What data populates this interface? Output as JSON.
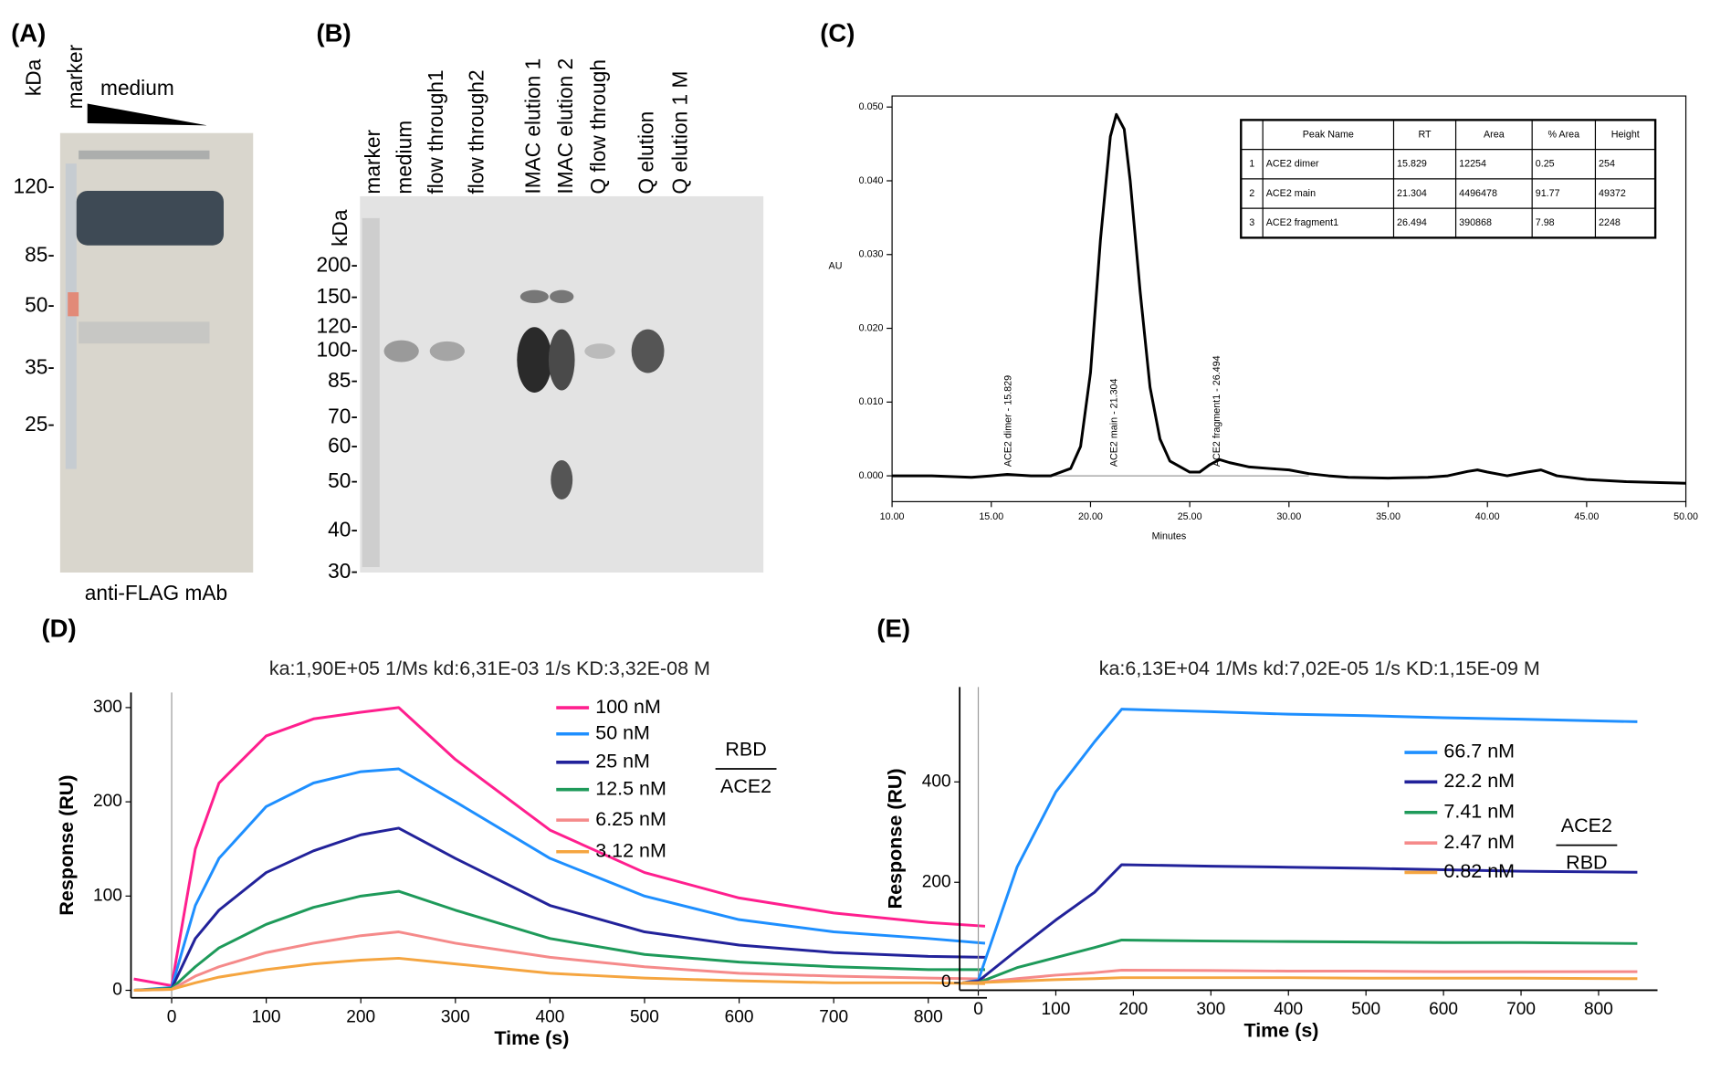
{
  "panel_labels": [
    "(A)",
    "(B)",
    "(C)",
    "(D)",
    "(E)"
  ],
  "gel_a": {
    "unit": "kDa",
    "lane_label": "marker",
    "gradient_label": "medium",
    "markers": [
      "120-",
      "85-",
      "50-",
      "35-",
      "25-"
    ],
    "caption": "anti-FLAG mAb"
  },
  "gel_b": {
    "unit": "kDa",
    "lanes": [
      "marker",
      "medium",
      "flow through1",
      "flow through2",
      "IMAC elution 1",
      "IMAC elution 2",
      "Q flow through",
      "Q elution",
      "Q elution 1 M"
    ],
    "markers": [
      "200-",
      "150-",
      "120-",
      "100-",
      "85-",
      "70-",
      "60-",
      "50-",
      "40-",
      "30-"
    ]
  },
  "chart_data": [
    {
      "type": "line",
      "xlabel": "Minutes",
      "ylabel": "AU",
      "color": "#000000",
      "x": [
        10,
        12,
        14,
        15,
        15.8,
        17,
        18,
        19,
        19.5,
        20,
        20.5,
        21,
        21.3,
        21.7,
        22,
        22.5,
        23,
        23.5,
        24,
        25,
        25.5,
        26,
        26.5,
        27,
        28,
        29,
        30,
        31,
        32,
        33,
        35,
        37,
        38,
        39,
        39.5,
        40,
        41,
        42,
        42.7,
        43.5,
        45,
        47,
        50
      ],
      "values": [
        0,
        0,
        -0.0002,
        0,
        0.0002,
        0,
        0,
        0.001,
        0.004,
        0.014,
        0.032,
        0.046,
        0.049,
        0.047,
        0.04,
        0.025,
        0.012,
        0.005,
        0.002,
        0.0005,
        0.0005,
        0.0015,
        0.0022,
        0.0018,
        0.0012,
        0.001,
        0.0008,
        0.0003,
        0,
        -0.0002,
        -0.0003,
        -0.0002,
        0,
        0.0006,
        0.0008,
        0.0005,
        0,
        0.0005,
        0.0008,
        0,
        -0.0005,
        -0.0008,
        -0.001
      ],
      "xlim": [
        10,
        50
      ],
      "ylim": [
        -0.0035,
        0.0515
      ],
      "xticks": [
        {
          "value": 10,
          "label": "10.00"
        },
        {
          "value": 15,
          "label": "15.00"
        },
        {
          "value": 20,
          "label": "20.00"
        },
        {
          "value": 25,
          "label": "25.00"
        },
        {
          "value": 30,
          "label": "30.00"
        },
        {
          "value": 35,
          "label": "35.00"
        },
        {
          "value": 40,
          "label": "40.00"
        },
        {
          "value": 45,
          "label": "45.00"
        },
        {
          "value": 50,
          "label": "50.00"
        }
      ],
      "yticks": [
        {
          "value": 0,
          "label": "0.000"
        },
        {
          "value": 0.01,
          "label": "0.010"
        },
        {
          "value": 0.02,
          "label": "0.020"
        },
        {
          "value": 0.03,
          "label": "0.030"
        },
        {
          "value": 0.04,
          "label": "0.040"
        },
        {
          "value": 0.05,
          "label": "0.050"
        }
      ],
      "annotations": [
        "ACE2 dimer  - 15.829",
        "ACE2 main - 21.304",
        "ACE2 fragment1 - 26.494"
      ],
      "table": {
        "header": [
          "Peak Name",
          "RT",
          "Area",
          "% Area",
          "Height"
        ],
        "rows": [
          [
            "1",
            "ACE2 dimer",
            "15.829",
            "12254",
            "0.25",
            "254"
          ],
          [
            "2",
            "ACE2 main",
            "21.304",
            "4496478",
            "91.77",
            "49372"
          ],
          [
            "3",
            "ACE2 fragment1",
            "26.494",
            "390868",
            "7.98",
            "2248"
          ]
        ]
      }
    },
    {
      "type": "line",
      "title": "ka:1,90E+05 1/Ms  kd:6,31E-03 1/s  KD:3,32E-08 M",
      "xlabel": "Time (s)",
      "ylabel": "Response (RU)",
      "x": [
        -40,
        0,
        25,
        50,
        100,
        150,
        200,
        240,
        300,
        400,
        500,
        600,
        700,
        800,
        860
      ],
      "series": [
        {
          "name": "100 nM",
          "color": "#ff1f8e",
          "values": [
            12,
            5,
            150,
            220,
            270,
            288,
            295,
            300,
            245,
            170,
            125,
            98,
            82,
            72,
            68
          ]
        },
        {
          "name": "50 nM",
          "color": "#1e8fff",
          "values": [
            0,
            3,
            90,
            140,
            195,
            220,
            232,
            235,
            200,
            140,
            100,
            75,
            62,
            55,
            50
          ]
        },
        {
          "name": "25 nM",
          "color": "#22229a",
          "values": [
            0,
            2,
            55,
            85,
            125,
            148,
            165,
            172,
            140,
            90,
            62,
            48,
            40,
            36,
            35
          ]
        },
        {
          "name": "12.5 nM",
          "color": "#1e9a5a",
          "values": [
            0,
            2,
            25,
            45,
            70,
            88,
            100,
            105,
            85,
            55,
            38,
            30,
            25,
            22,
            22
          ]
        },
        {
          "name": "6.25 nM",
          "color": "#f58a8a",
          "values": [
            0,
            1,
            15,
            25,
            40,
            50,
            58,
            62,
            50,
            35,
            25,
            18,
            15,
            13,
            12
          ]
        },
        {
          "name": "3.12 nM",
          "color": "#f5a540",
          "values": [
            0,
            1,
            8,
            14,
            22,
            28,
            32,
            34,
            28,
            18,
            13,
            10,
            8,
            8,
            7
          ]
        }
      ],
      "xlim": [
        -43,
        862
      ],
      "ylim": [
        -8,
        316
      ],
      "xticks": [
        0,
        100,
        200,
        300,
        400,
        500,
        600,
        700,
        800
      ],
      "yticks": [
        0,
        100,
        200,
        300
      ],
      "fraction": {
        "top": "RBD",
        "bottom": "ACE2"
      }
    },
    {
      "type": "line",
      "title": "ka:6,13E+04 1/Ms  kd:7,02E-05 1/s  KD:1,15E-09 M",
      "xlabel": "Time (s)",
      "ylabel": "Response (RU)",
      "x": [
        -20,
        0,
        50,
        100,
        150,
        185,
        300,
        400,
        500,
        600,
        700,
        850
      ],
      "series": [
        {
          "name": "66.7 nM",
          "color": "#1e8fff",
          "values": [
            0,
            5,
            230,
            380,
            480,
            545,
            540,
            535,
            532,
            528,
            525,
            520
          ]
        },
        {
          "name": "22.2 nM",
          "color": "#22229a",
          "values": [
            0,
            3,
            65,
            125,
            180,
            235,
            232,
            230,
            228,
            225,
            222,
            220
          ]
        },
        {
          "name": "7.41 nM",
          "color": "#1e9a5a",
          "values": [
            0,
            0,
            30,
            50,
            70,
            85,
            83,
            82,
            81,
            80,
            80,
            78
          ]
        },
        {
          "name": "2.47 nM",
          "color": "#f58a8a",
          "values": [
            0,
            0,
            8,
            15,
            20,
            25,
            24,
            23,
            23,
            22,
            22,
            22
          ]
        },
        {
          "name": "0.82 nM",
          "color": "#f5a540",
          "values": [
            0,
            0,
            3,
            6,
            8,
            10,
            10,
            10,
            9,
            9,
            9,
            8
          ]
        }
      ],
      "xlim": [
        -24,
        876
      ],
      "ylim": [
        -15,
        589
      ],
      "xticks": [
        0,
        100,
        200,
        300,
        400,
        500,
        600,
        700,
        800
      ],
      "yticks": [
        0,
        200,
        400
      ],
      "fraction": {
        "top": "ACE2",
        "bottom": "RBD"
      }
    }
  ]
}
